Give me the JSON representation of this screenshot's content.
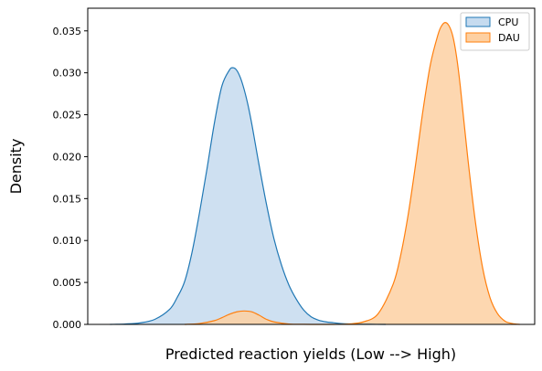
{
  "chart_data": {
    "type": "area",
    "title": "",
    "xlabel": "Predicted reaction yields (Low --> High)",
    "ylabel": "Density",
    "xlim": [
      -10,
      110
    ],
    "ylim": [
      0,
      0.0377
    ],
    "yticks": [
      0.0,
      0.005,
      0.01,
      0.015,
      0.02,
      0.025,
      0.03,
      0.035
    ],
    "ytick_labels": [
      "0.000",
      "0.005",
      "0.010",
      "0.015",
      "0.020",
      "0.025",
      "0.030",
      "0.035"
    ],
    "xticks_shown": false,
    "grid": false,
    "legend_position": "top-right",
    "series": [
      {
        "name": "CPU",
        "color": "#1f77b4",
        "fill": "#c6dbef",
        "x": [
          -4,
          0,
          4,
          8,
          12,
          14,
          16,
          18,
          20,
          22,
          24,
          26,
          28,
          29,
          30,
          31,
          32,
          33,
          34,
          35,
          36,
          38,
          40,
          42,
          44,
          46,
          48,
          50,
          52,
          54,
          56,
          58,
          62,
          66,
          70
        ],
        "y": [
          0.0,
          5e-05,
          0.00018,
          0.0006,
          0.0018,
          0.0032,
          0.0051,
          0.0086,
          0.0133,
          0.0185,
          0.024,
          0.0284,
          0.0303,
          0.0306,
          0.0303,
          0.0294,
          0.028,
          0.0262,
          0.024,
          0.0215,
          0.019,
          0.0143,
          0.0102,
          0.0071,
          0.0047,
          0.003,
          0.0017,
          0.0009,
          0.0005,
          0.0003,
          0.0002,
          0.0001,
          3e-05,
          1e-05,
          0.0
        ]
      },
      {
        "name": "DAU",
        "color": "#ff7f0e",
        "fill": "#fdd0a2",
        "x": [
          16,
          20,
          24,
          26,
          28,
          30,
          32,
          34,
          36,
          38,
          40,
          44,
          48,
          52,
          56,
          60,
          64,
          68,
          72,
          74,
          76,
          78,
          80,
          82,
          84,
          85,
          86,
          87,
          88,
          89,
          90,
          92,
          94,
          96,
          98,
          100,
          102,
          104,
          106
        ],
        "y": [
          0.0,
          0.0001,
          0.00045,
          0.0008,
          0.0012,
          0.0015,
          0.0016,
          0.0015,
          0.0011,
          0.0006,
          0.0003,
          5e-05,
          1e-05,
          0.0,
          0.0,
          5e-05,
          0.0003,
          0.0013,
          0.0048,
          0.0082,
          0.013,
          0.019,
          0.0255,
          0.031,
          0.0345,
          0.0356,
          0.036,
          0.0356,
          0.0344,
          0.032,
          0.0285,
          0.02,
          0.0125,
          0.0068,
          0.0032,
          0.0013,
          0.0004,
          0.0001,
          0.0
        ]
      }
    ]
  }
}
